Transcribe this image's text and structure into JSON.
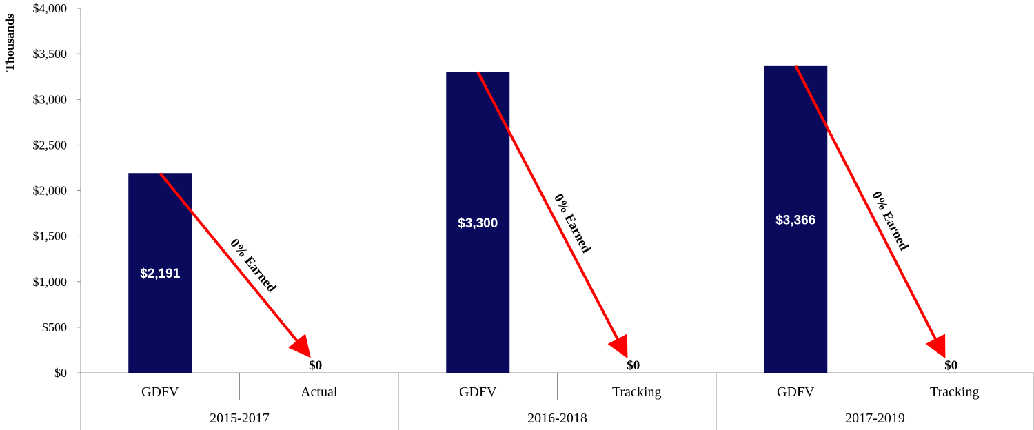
{
  "chart_data": {
    "type": "bar",
    "ylabel": "Thousands",
    "ylim": [
      0,
      4000
    ],
    "yticks": [
      "$0",
      "$500",
      "$1,000",
      "$1,500",
      "$2,000",
      "$2,500",
      "$3,000",
      "$3,500",
      "$4,000"
    ],
    "grid": false,
    "legend": "none",
    "bar_color": "#0a0a5c",
    "arrow_color": "#ff0000",
    "groups": [
      {
        "period": "2015-2017",
        "bars": [
          {
            "category": "GDFV",
            "value": 2191,
            "label": "$2,191"
          },
          {
            "category": "Actual",
            "value": 0,
            "label": "$0"
          }
        ],
        "annotation": "0% Earned"
      },
      {
        "period": "2016-2018",
        "bars": [
          {
            "category": "GDFV",
            "value": 3300,
            "label": "$3,300"
          },
          {
            "category": "Tracking",
            "value": 0,
            "label": "$0"
          }
        ],
        "annotation": "0% Earned"
      },
      {
        "period": "2017-2019",
        "bars": [
          {
            "category": "GDFV",
            "value": 3366,
            "label": "$3,366"
          },
          {
            "category": "Tracking",
            "value": 0,
            "label": "$0"
          }
        ],
        "annotation": "0% Earned"
      }
    ]
  }
}
